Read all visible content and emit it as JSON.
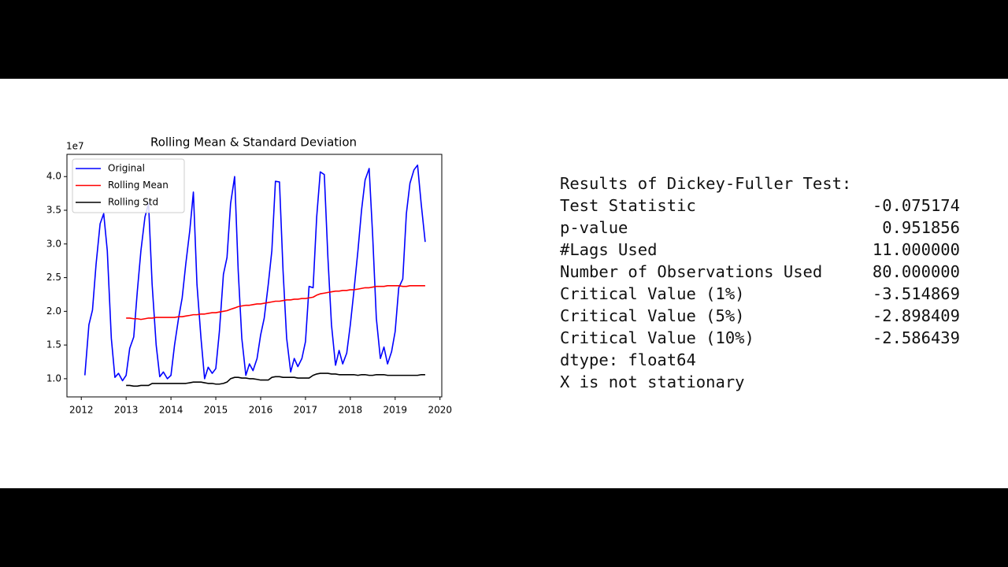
{
  "chart_data": {
    "type": "line",
    "title": "Rolling Mean & Standard Deviation",
    "y_offset_label": "1e7",
    "xlim": [
      2011.68,
      2020.04
    ],
    "xticks": [
      2012,
      2013,
      2014,
      2015,
      2016,
      2017,
      2018,
      2019,
      2020
    ],
    "ylim": [
      0.73,
      4.33
    ],
    "yticks": [
      {
        "value": 1,
        "label": "1.0"
      },
      {
        "value": 1.5,
        "label": "1.5"
      },
      {
        "value": 2,
        "label": "2.0"
      },
      {
        "value": 2.5,
        "label": "2.5"
      },
      {
        "value": 3,
        "label": "3.0"
      },
      {
        "value": 3.5,
        "label": "3.5"
      },
      {
        "value": 4,
        "label": "4.0"
      }
    ],
    "grid": false,
    "legend": "upper left",
    "x": [
      2012.08,
      2012.17,
      2012.25,
      2012.33,
      2012.42,
      2012.5,
      2012.58,
      2012.67,
      2012.75,
      2012.83,
      2012.92,
      2013.0,
      2013.08,
      2013.17,
      2013.25,
      2013.33,
      2013.42,
      2013.5,
      2013.58,
      2013.67,
      2013.75,
      2013.83,
      2013.92,
      2014.0,
      2014.08,
      2014.17,
      2014.25,
      2014.33,
      2014.42,
      2014.5,
      2014.58,
      2014.67,
      2014.75,
      2014.83,
      2014.92,
      2015.0,
      2015.08,
      2015.17,
      2015.25,
      2015.33,
      2015.42,
      2015.5,
      2015.58,
      2015.67,
      2015.75,
      2015.83,
      2015.92,
      2016.0,
      2016.08,
      2016.17,
      2016.25,
      2016.33,
      2016.42,
      2016.5,
      2016.58,
      2016.67,
      2016.75,
      2016.83,
      2016.92,
      2017.0,
      2017.08,
      2017.17,
      2017.25,
      2017.33,
      2017.42,
      2017.5,
      2017.58,
      2017.67,
      2017.75,
      2017.83,
      2017.92,
      2018.0,
      2018.08,
      2018.17,
      2018.25,
      2018.33,
      2018.42,
      2018.5,
      2018.58,
      2018.67,
      2018.75,
      2018.83,
      2018.92,
      2019.0,
      2019.08,
      2019.17,
      2019.25,
      2019.33,
      2019.42,
      2019.5,
      2019.58,
      2019.67
    ],
    "series": [
      {
        "name": "Original",
        "color": "#0000ff",
        "values": [
          1.05,
          1.8,
          2.02,
          2.7,
          3.3,
          3.45,
          2.9,
          1.6,
          1.02,
          1.08,
          0.97,
          1.05,
          1.45,
          1.62,
          2.3,
          2.9,
          3.4,
          3.6,
          2.4,
          1.5,
          1.03,
          1.1,
          1.0,
          1.05,
          1.5,
          1.9,
          2.2,
          2.7,
          3.2,
          3.77,
          2.4,
          1.6,
          1.0,
          1.17,
          1.08,
          1.15,
          1.7,
          2.55,
          2.8,
          3.6,
          4.0,
          2.6,
          1.6,
          1.05,
          1.22,
          1.12,
          1.3,
          1.65,
          1.9,
          2.4,
          2.9,
          3.93,
          3.92,
          2.6,
          1.6,
          1.1,
          1.3,
          1.18,
          1.3,
          1.55,
          2.37,
          2.35,
          3.4,
          4.07,
          4.03,
          2.8,
          1.8,
          1.2,
          1.42,
          1.22,
          1.38,
          1.8,
          2.3,
          2.9,
          3.5,
          3.95,
          4.12,
          3.1,
          1.9,
          1.3,
          1.47,
          1.22,
          1.4,
          1.7,
          2.35,
          2.48,
          3.45,
          3.9,
          4.1,
          4.17,
          3.6,
          3.03
        ]
      },
      {
        "name": "Rolling Mean",
        "color": "#ff0000",
        "values": [
          null,
          null,
          null,
          null,
          null,
          null,
          null,
          null,
          null,
          null,
          null,
          1.9,
          1.9,
          1.89,
          1.89,
          1.88,
          1.89,
          1.9,
          1.9,
          1.91,
          1.91,
          1.91,
          1.91,
          1.91,
          1.91,
          1.92,
          1.92,
          1.93,
          1.94,
          1.95,
          1.95,
          1.96,
          1.96,
          1.97,
          1.98,
          1.98,
          1.99,
          2.0,
          2.01,
          2.03,
          2.05,
          2.07,
          2.08,
          2.09,
          2.09,
          2.1,
          2.11,
          2.11,
          2.12,
          2.13,
          2.14,
          2.15,
          2.15,
          2.16,
          2.17,
          2.17,
          2.18,
          2.18,
          2.19,
          2.19,
          2.2,
          2.21,
          2.24,
          2.26,
          2.27,
          2.28,
          2.29,
          2.3,
          2.3,
          2.31,
          2.31,
          2.32,
          2.32,
          2.33,
          2.34,
          2.35,
          2.35,
          2.36,
          2.37,
          2.37,
          2.37,
          2.38,
          2.38,
          2.38,
          2.38,
          2.37,
          2.37,
          2.38,
          2.38,
          2.38,
          2.38,
          2.38
        ]
      },
      {
        "name": "Rolling Std",
        "color": "#000000",
        "values": [
          null,
          null,
          null,
          null,
          null,
          null,
          null,
          null,
          null,
          null,
          null,
          0.9,
          0.9,
          0.89,
          0.89,
          0.9,
          0.9,
          0.9,
          0.93,
          0.93,
          0.93,
          0.93,
          0.93,
          0.93,
          0.93,
          0.93,
          0.93,
          0.93,
          0.94,
          0.95,
          0.95,
          0.95,
          0.94,
          0.93,
          0.93,
          0.92,
          0.92,
          0.93,
          0.95,
          1.0,
          1.02,
          1.02,
          1.01,
          1.01,
          1.0,
          1.0,
          0.99,
          0.98,
          0.98,
          0.98,
          1.02,
          1.03,
          1.03,
          1.02,
          1.02,
          1.02,
          1.02,
          1.01,
          1.01,
          1.01,
          1.01,
          1.05,
          1.07,
          1.08,
          1.08,
          1.08,
          1.07,
          1.07,
          1.06,
          1.06,
          1.06,
          1.06,
          1.06,
          1.05,
          1.06,
          1.06,
          1.05,
          1.05,
          1.06,
          1.06,
          1.06,
          1.05,
          1.05,
          1.05,
          1.05,
          1.05,
          1.05,
          1.05,
          1.05,
          1.05,
          1.06,
          1.06
        ]
      }
    ]
  },
  "results": {
    "title": "Results of Dickey-Fuller Test:",
    "rows": [
      [
        "Test Statistic",
        "-0.075174"
      ],
      [
        "p-value",
        "0.951856"
      ],
      [
        "#Lags Used",
        "11.000000"
      ],
      [
        "Number of Observations Used",
        "80.000000"
      ],
      [
        "Critical Value (1%)",
        "-3.514869"
      ],
      [
        "Critical Value (5%)",
        "-2.898409"
      ],
      [
        "Critical Value (10%)",
        "-2.586439"
      ]
    ],
    "dtype": "dtype: float64",
    "conclusion": "X is not stationary"
  }
}
